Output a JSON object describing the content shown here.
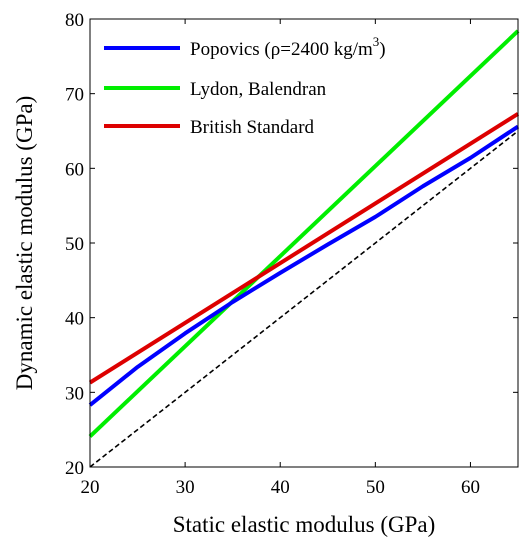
{
  "chart_data": {
    "type": "line",
    "xlabel": "Static elastic modulus (GPa)",
    "ylabel": "Dynamic elastic modulus (GPa)",
    "xlim": [
      20,
      65
    ],
    "ylim": [
      20,
      80
    ],
    "xticks": [
      20,
      30,
      40,
      50,
      60
    ],
    "yticks": [
      20,
      30,
      40,
      50,
      60,
      70,
      80
    ],
    "grid": false,
    "legend_position": "top-left",
    "series": [
      {
        "name": "Popovics (ρ=2400 kg/m3)",
        "legend_main": "Popovics (ρ=2400 kg/m",
        "legend_sup": "3",
        "legend_tail": ")",
        "color": "#0000ff",
        "x": [
          20,
          25,
          30,
          35,
          40,
          45,
          50,
          55,
          60,
          65
        ],
        "y": [
          28.3,
          33.4,
          37.9,
          42.1,
          46.0,
          49.8,
          53.5,
          57.6,
          61.4,
          65.6
        ]
      },
      {
        "name": "Lydon, Balendran",
        "color": "#00ee00",
        "x": [
          20,
          65
        ],
        "y": [
          24.1,
          78.4
        ]
      },
      {
        "name": "British Standard",
        "color": "#dd0000",
        "x": [
          20,
          65
        ],
        "y": [
          31.3,
          67.3
        ]
      },
      {
        "name": "",
        "color": "#000000",
        "dashed": true,
        "x": [
          20,
          65
        ],
        "y": [
          20,
          65
        ]
      }
    ]
  }
}
